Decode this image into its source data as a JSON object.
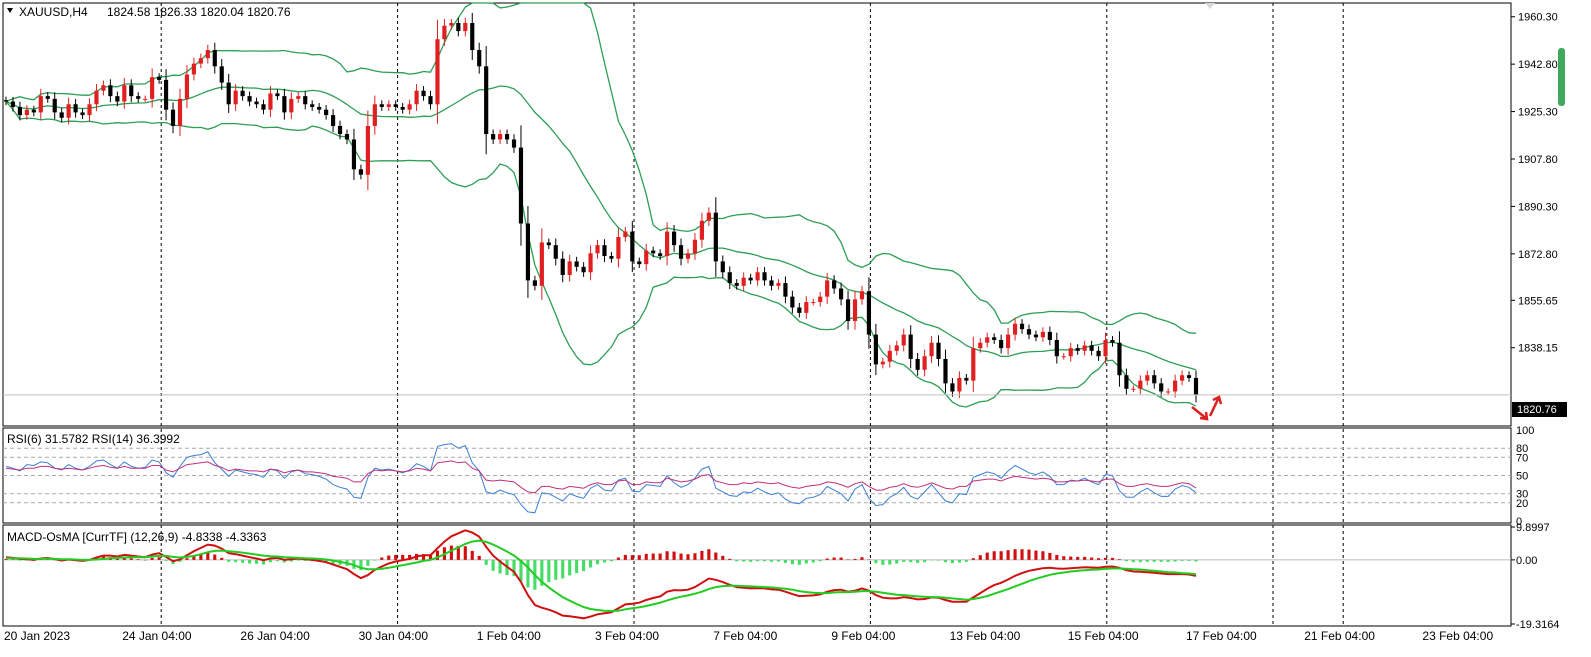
{
  "main_header": {
    "symbol": "XAUUSD,H4",
    "ohlc": "1824.58 1826.33 1820.04 1820.76"
  },
  "rsi_header": "RSI(6) 31.5782  RSI(14) 36.3992",
  "macd_header": "MACD-OsMA [CurrTF] (12,26,9) -4.8338 -4.3363",
  "current_price": "1820.76",
  "colors": {
    "bull": "#e02020",
    "bear": "#000000",
    "bands": "#2e9e55",
    "rsi6": "#3b7fd6",
    "rsi14": "#c0307a",
    "macd_main": "#d01010",
    "macd_signal": "#22cc22",
    "osma_pos": "#d01010",
    "osma_neg": "#44dd66"
  },
  "chart_data": [
    {
      "type": "candlestick",
      "title": "XAUUSD,H4",
      "ylim": [
        1810.0,
        1965.0
      ],
      "y_ticks": [
        "1960.30",
        "1942.80",
        "1925.30",
        "1907.80",
        "1890.30",
        "1872.80",
        "1855.65",
        "1838.15"
      ],
      "x_ticks": [
        "20 Jan 2023",
        "24 Jan 04:00",
        "26 Jan 04:00",
        "30 Jan 04:00",
        "1 Feb 04:00",
        "3 Feb 04:00",
        "7 Feb 04:00",
        "9 Feb 04:00",
        "13 Feb 04:00",
        "15 Feb 04:00",
        "17 Feb 04:00",
        "21 Feb 04:00",
        "23 Feb 04:00"
      ],
      "last_close": 1820.76,
      "indicators": [
        "Bollinger Bands"
      ],
      "closes": [
        1929,
        1927,
        1924,
        1926,
        1925,
        1931,
        1930,
        1925,
        1923,
        1928,
        1925,
        1924,
        1928,
        1933,
        1935,
        1931,
        1929,
        1935,
        1931,
        1930,
        1930,
        1938,
        1937,
        1926,
        1920,
        1930,
        1939,
        1943,
        1945,
        1948,
        1942,
        1936,
        1928,
        1933,
        1931,
        1929,
        1928,
        1926,
        1932,
        1931,
        1925,
        1930,
        1931,
        1928,
        1927,
        1926,
        1924,
        1920,
        1917,
        1915,
        1904,
        1902,
        1920,
        1928,
        1927,
        1928,
        1927,
        1926,
        1928,
        1933,
        1931,
        1928,
        1952,
        1957,
        1958,
        1955,
        1958,
        1948,
        1942,
        1917,
        1915,
        1917,
        1915,
        1912,
        1884,
        1863,
        1861,
        1877,
        1876,
        1871,
        1865,
        1870,
        1868,
        1866,
        1873,
        1876,
        1872,
        1871,
        1879,
        1881,
        1870,
        1869,
        1874,
        1873,
        1872,
        1881,
        1876,
        1871,
        1873,
        1878,
        1885,
        1888,
        1870,
        1866,
        1862,
        1861,
        1864,
        1863,
        1866,
        1863,
        1861,
        1862,
        1857,
        1853,
        1851,
        1855,
        1855,
        1857,
        1863,
        1860,
        1856,
        1848,
        1856,
        1859,
        1843,
        1832,
        1833,
        1837,
        1839,
        1843,
        1834,
        1830,
        1835,
        1840,
        1834,
        1825,
        1822,
        1827,
        1826,
        1838,
        1840,
        1842,
        1841,
        1838,
        1843,
        1847,
        1845,
        1843,
        1842,
        1844,
        1841,
        1835,
        1835,
        1838,
        1837,
        1839,
        1837,
        1835,
        1841,
        1840,
        1828,
        1823,
        1823,
        1826,
        1828,
        1825,
        1822,
        1822,
        1826,
        1828,
        1827,
        1820.76
      ],
      "rsi6": [
        60,
        58,
        55,
        62,
        61,
        65,
        64,
        58,
        56,
        62,
        58,
        56,
        60,
        66,
        67,
        62,
        58,
        65,
        60,
        58,
        59,
        67,
        65,
        53,
        48,
        60,
        70,
        72,
        73,
        76,
        64,
        57,
        49,
        56,
        54,
        52,
        51,
        48,
        57,
        55,
        47,
        54,
        56,
        52,
        51,
        49,
        46,
        40,
        37,
        35,
        26,
        25,
        48,
        58,
        56,
        57,
        55,
        53,
        56,
        63,
        60,
        55,
        82,
        84,
        85,
        80,
        83,
        64,
        55,
        32,
        30,
        34,
        31,
        29,
        18,
        10,
        9,
        31,
        30,
        26,
        22,
        30,
        27,
        25,
        36,
        40,
        34,
        33,
        45,
        47,
        33,
        32,
        40,
        39,
        38,
        50,
        42,
        37,
        40,
        47,
        57,
        60,
        36,
        32,
        28,
        27,
        32,
        31,
        36,
        32,
        29,
        31,
        24,
        20,
        19,
        25,
        26,
        29,
        38,
        34,
        30,
        22,
        35,
        40,
        25,
        17,
        18,
        26,
        30,
        37,
        27,
        24,
        32,
        40,
        31,
        22,
        20,
        30,
        29,
        48,
        51,
        54,
        52,
        47,
        55,
        61,
        57,
        53,
        51,
        54,
        49,
        40,
        40,
        45,
        44,
        47,
        43,
        40,
        51,
        50,
        33,
        26,
        26,
        32,
        36,
        31,
        27,
        27,
        35,
        39,
        37,
        31
      ],
      "rsi14": [
        58,
        57,
        56,
        58,
        58,
        60,
        60,
        58,
        57,
        58,
        57,
        56,
        58,
        60,
        61,
        59,
        58,
        60,
        58,
        58,
        58,
        61,
        61,
        56,
        54,
        58,
        62,
        63,
        64,
        65,
        61,
        59,
        55,
        57,
        56,
        55,
        55,
        54,
        57,
        56,
        53,
        55,
        56,
        54,
        54,
        53,
        52,
        49,
        48,
        47,
        43,
        43,
        52,
        56,
        55,
        56,
        55,
        54,
        55,
        58,
        57,
        55,
        64,
        65,
        66,
        64,
        65,
        58,
        55,
        45,
        44,
        45,
        44,
        43,
        37,
        32,
        31,
        38,
        38,
        36,
        35,
        38,
        37,
        36,
        40,
        42,
        40,
        40,
        44,
        45,
        40,
        40,
        43,
        42,
        42,
        47,
        45,
        43,
        44,
        46,
        50,
        51,
        44,
        42,
        40,
        40,
        42,
        41,
        43,
        42,
        41,
        42,
        39,
        37,
        36,
        38,
        39,
        40,
        43,
        42,
        40,
        37,
        41,
        43,
        38,
        34,
        34,
        37,
        38,
        41,
        38,
        37,
        39,
        42,
        39,
        36,
        35,
        38,
        38,
        44,
        45,
        46,
        46,
        44,
        47,
        49,
        48,
        47,
        46,
        47,
        46,
        43,
        43,
        44,
        44,
        45,
        44,
        43,
        46,
        46,
        41,
        38,
        38,
        40,
        41,
        39,
        38,
        38,
        40,
        42,
        41,
        36.4
      ],
      "macd_main": [
        0.8,
        0.6,
        0.3,
        0.2,
        0.0,
        0.4,
        0.6,
        0.2,
        -0.2,
        0.1,
        -0.1,
        -0.3,
        0.0,
        0.7,
        1.3,
        1.3,
        1.0,
        1.5,
        1.3,
        1.0,
        0.8,
        1.6,
        2.0,
        0.9,
        -0.4,
        0.1,
        1.4,
        2.6,
        3.6,
        4.6,
        4.3,
        3.4,
        2.0,
        1.7,
        1.3,
        0.8,
        0.4,
        -0.1,
        0.4,
        0.6,
        0.0,
        0.2,
        0.4,
        0.2,
        0.0,
        -0.3,
        -0.7,
        -1.4,
        -2.1,
        -2.8,
        -4.3,
        -5.5,
        -4.6,
        -3.0,
        -2.0,
        -1.1,
        -0.5,
        -0.1,
        0.3,
        1.0,
        1.4,
        1.4,
        3.5,
        5.5,
        7.1,
        8.0,
        8.9,
        8.2,
        7.0,
        3.9,
        1.3,
        -0.5,
        -2.1,
        -3.6,
        -6.7,
        -10.6,
        -13.6,
        -14.4,
        -15.0,
        -15.8,
        -16.8,
        -17.0,
        -17.3,
        -17.6,
        -17.1,
        -16.4,
        -16.1,
        -15.8,
        -14.6,
        -13.4,
        -13.2,
        -12.9,
        -12.1,
        -11.5,
        -11.0,
        -9.6,
        -9.1,
        -9.2,
        -9.0,
        -8.2,
        -6.9,
        -5.6,
        -6.0,
        -6.7,
        -7.5,
        -8.2,
        -8.4,
        -8.6,
        -8.5,
        -8.6,
        -8.9,
        -9.0,
        -9.6,
        -10.3,
        -10.9,
        -10.8,
        -10.7,
        -10.4,
        -9.6,
        -9.1,
        -9.0,
        -9.6,
        -9.3,
        -8.6,
        -9.3,
        -10.6,
        -11.4,
        -11.6,
        -11.6,
        -11.2,
        -11.5,
        -11.9,
        -11.8,
        -11.3,
        -11.4,
        -12.1,
        -12.6,
        -12.6,
        -12.6,
        -11.3,
        -10.0,
        -8.7,
        -7.6,
        -6.9,
        -5.9,
        -4.8,
        -4.0,
        -3.3,
        -2.9,
        -2.5,
        -2.4,
        -2.6,
        -2.7,
        -2.5,
        -2.4,
        -2.2,
        -2.3,
        -2.4,
        -2.1,
        -2.0,
        -2.4,
        -3.1,
        -3.5,
        -3.6,
        -3.7,
        -3.9,
        -4.1,
        -4.3,
        -4.3,
        -4.3,
        -4.4,
        -4.8338
      ],
      "macd_signal": [
        0.5,
        0.5,
        0.5,
        0.4,
        0.3,
        0.3,
        0.4,
        0.3,
        0.2,
        0.2,
        0.1,
        0.0,
        0.0,
        0.1,
        0.3,
        0.5,
        0.6,
        0.7,
        0.8,
        0.8,
        0.8,
        1.0,
        1.2,
        1.2,
        0.9,
        0.7,
        0.9,
        1.2,
        1.7,
        2.3,
        2.7,
        2.8,
        2.6,
        2.4,
        2.2,
        1.9,
        1.6,
        1.3,
        1.1,
        1.0,
        0.8,
        0.7,
        0.6,
        0.5,
        0.4,
        0.3,
        0.1,
        -0.2,
        -0.6,
        -1.0,
        -1.6,
        -2.4,
        -2.8,
        -2.8,
        -2.7,
        -2.4,
        -2.0,
        -1.6,
        -1.2,
        -0.8,
        -0.3,
        0.0,
        0.7,
        1.7,
        2.8,
        3.8,
        4.8,
        5.5,
        5.8,
        5.4,
        4.6,
        3.6,
        2.5,
        1.3,
        -0.3,
        -2.3,
        -4.6,
        -6.6,
        -8.3,
        -9.8,
        -11.2,
        -12.3,
        -13.3,
        -14.2,
        -14.8,
        -15.1,
        -15.3,
        -15.4,
        -15.3,
        -14.9,
        -14.6,
        -14.3,
        -13.9,
        -13.4,
        -12.9,
        -12.2,
        -11.6,
        -11.1,
        -10.7,
        -10.2,
        -9.6,
        -8.8,
        -8.2,
        -7.9,
        -7.8,
        -7.8,
        -7.9,
        -8.0,
        -8.1,
        -8.2,
        -8.3,
        -8.5,
        -8.7,
        -9.0,
        -9.4,
        -9.7,
        -9.9,
        -10.0,
        -10.0,
        -9.8,
        -9.7,
        -9.7,
        -9.6,
        -9.4,
        -9.4,
        -9.6,
        -9.9,
        -10.2,
        -10.5,
        -10.6,
        -10.8,
        -11.0,
        -11.1,
        -11.2,
        -11.2,
        -11.4,
        -11.6,
        -11.8,
        -12.0,
        -11.8,
        -11.4,
        -10.9,
        -10.2,
        -9.5,
        -8.8,
        -8.0,
        -7.2,
        -6.4,
        -5.7,
        -5.1,
        -4.5,
        -4.1,
        -3.8,
        -3.5,
        -3.3,
        -3.1,
        -3.0,
        -2.9,
        -2.7,
        -2.6,
        -2.6,
        -2.7,
        -2.8,
        -2.9,
        -3.1,
        -3.3,
        -3.5,
        -3.7,
        -3.8,
        -4.0,
        -4.1,
        -4.3363
      ]
    },
    {
      "type": "line",
      "title": "RSI(6) RSI(14)",
      "ylim": [
        0,
        100
      ],
      "y_ticks": [
        "100",
        "80",
        "70",
        "50",
        "30",
        "20",
        "0"
      ],
      "series": [
        {
          "name": "RSI(6)",
          "last": 31.5782
        },
        {
          "name": "RSI(14)",
          "last": 36.3992
        }
      ]
    },
    {
      "type": "bar",
      "title": "MACD-OsMA [CurrTF] (12,26,9)",
      "ylim": [
        -19.3164,
        9.8997
      ],
      "y_ticks": [
        "9.8997",
        "0.00",
        "-19.3164"
      ],
      "series": [
        {
          "name": "MACD",
          "last": -4.8338
        },
        {
          "name": "Signal",
          "last": -4.3363
        }
      ]
    }
  ]
}
